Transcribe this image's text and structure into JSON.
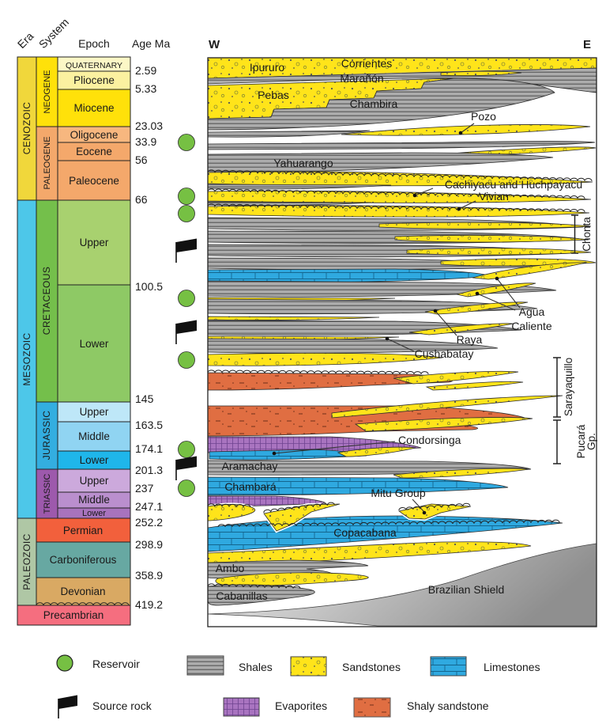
{
  "axis": {
    "era": "Era",
    "system": "System",
    "epoch": "Epoch",
    "age_ma": "Age Ma"
  },
  "orientation": {
    "west": "W",
    "east": "E"
  },
  "timescale": {
    "eras": [
      "CENOZOIC",
      "MESOZOIC",
      "PALEOZOIC"
    ],
    "era_colors": [
      "#F0D73B",
      "#4DC7E9",
      "#AFC7A5"
    ],
    "systems": [
      "NEOGENE",
      "PALEOGENE",
      "CRETACEOUS",
      "JURASSIC",
      "TRIASSIC"
    ],
    "system_colors": [
      "#FFE10A",
      "#F4A86B",
      "#74BF4B",
      "#33AEE0",
      "#9D59AC"
    ],
    "epochs": [
      "QUATERNARY",
      "Pliocene",
      "Miocene",
      "Oligocene",
      "Eocene",
      "Paleocene",
      "Upper",
      "Lower",
      "Upper",
      "Middle",
      "Lower",
      "Upper",
      "Middle",
      "Lower",
      "Permian",
      "Carboniferous",
      "Devonian",
      "Precambrian"
    ],
    "epoch_colors": [
      "#FCF7C6",
      "#FBF1A0",
      "#FFE10A",
      "#F7B77F",
      "#F4A86B",
      "#F4A86B",
      "#A8D16F",
      "#8EC965",
      "#BEE7F8",
      "#90D4F2",
      "#1FB6EA",
      "#CCA9DC",
      "#BA8FCE",
      "#A873BD",
      "#F2603C",
      "#67A8A2",
      "#D9A963",
      "#F56E7F"
    ],
    "ages": [
      "2.59",
      "5.33",
      "23.03",
      "33.9",
      "56",
      "66",
      "100.5",
      "145",
      "163.5",
      "174.1",
      "201.3",
      "237",
      "247.1",
      "252.2",
      "298.9",
      "358.9",
      "419.2"
    ]
  },
  "formations": {
    "ipururo": "Ipururo",
    "corrientes": "Corrientes",
    "maranon": "Marañón",
    "pebas": "Pebas",
    "chambira": "Chambira",
    "pozo": "Pozo",
    "yahuarango": "Yahuarango",
    "cachiyacu_huchpayacu": "Cachiyacu and Huchpayacu",
    "vivian": "Vivian",
    "agua_caliente_line1": "Agua",
    "agua_caliente_line2": "Caliente",
    "raya": "Raya",
    "cushabatay": "Cushabatay",
    "condorsinga": "Condorsinga",
    "aramachay": "Aramachay",
    "chambara": "Chambará",
    "mitu_group": "Mitu Group",
    "copacabana": "Copacabana",
    "ambo": "Ambo",
    "cabanillas": "Cabanillas",
    "brazilian_shield": "Brazilian Shield"
  },
  "brackets": {
    "chonta": "Chonta",
    "sarayaquillo": "Sarayaquillo",
    "pucara": "Pucará",
    "pucara_gp": "Gp."
  },
  "legend": {
    "reservoir": "Reservoir",
    "source_rock": "Source rock",
    "shales": "Shales",
    "sandstones": "Sandstones",
    "limestones": "Limestones",
    "evaporites": "Evaporites",
    "shaly_sandstone": "Shaly sandstone"
  },
  "colors": {
    "reservoir_green": "#76C043",
    "flag_black": "#111111",
    "sandstone_yellow": "#FFE41A",
    "shale_gray": "#ACACAC",
    "limestone_blue": "#2FA9E0",
    "evaporite_purple": "#A974C0",
    "shaly_sandstone_orange": "#E06E42",
    "shield_gray": "#9A9A9A",
    "outline": "#222222"
  }
}
